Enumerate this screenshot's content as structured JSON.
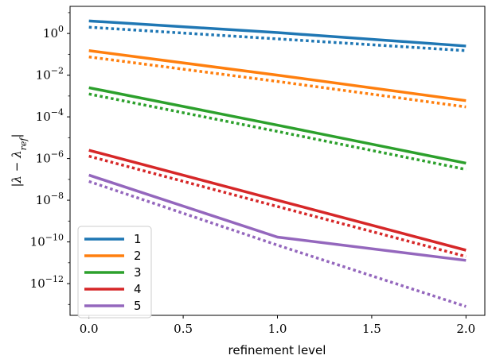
{
  "chart_data": {
    "type": "line",
    "title": "",
    "xlabel": "refinement level",
    "ylabel": "|λ − λ_ref|",
    "yscale": "log",
    "xlim": [
      -0.1,
      2.1
    ],
    "ylim": [
      3e-14,
      20
    ],
    "x": [
      0,
      1,
      2
    ],
    "xticks": [
      0.0,
      0.5,
      1.0,
      1.5,
      2.0
    ],
    "xtick_labels": [
      "0.0",
      "0.5",
      "1.0",
      "1.5",
      "2.0"
    ],
    "yticks": [
      1,
      0.01,
      0.0001,
      1e-06,
      1e-08,
      1e-10,
      1e-12
    ],
    "ytick_labels": [
      {
        "base": "10",
        "exp": "0"
      },
      {
        "base": "10",
        "exp": "−2"
      },
      {
        "base": "10",
        "exp": "−4"
      },
      {
        "base": "10",
        "exp": "−6"
      },
      {
        "base": "10",
        "exp": "−8"
      },
      {
        "base": "10",
        "exp": "−10"
      },
      {
        "base": "10",
        "exp": "−12"
      }
    ],
    "grid": false,
    "legend_position": "lower-left",
    "series": [
      {
        "name": "1",
        "color": "#1f77b4",
        "values": [
          4.0,
          1.1,
          0.25
        ],
        "reference": [
          2.0,
          0.55,
          0.15
        ]
      },
      {
        "name": "2",
        "color": "#ff7f0e",
        "values": [
          0.15,
          0.01,
          0.0006
        ],
        "reference": [
          0.075,
          0.005,
          0.0003
        ]
      },
      {
        "name": "3",
        "color": "#2ca02c",
        "values": [
          0.0025,
          4e-05,
          6e-07
        ],
        "reference": [
          0.00125,
          2e-05,
          3e-07
        ]
      },
      {
        "name": "4",
        "color": "#d62728",
        "values": [
          2.5e-06,
          1e-08,
          4e-11
        ],
        "reference": [
          1.3e-06,
          5e-09,
          2e-11
        ]
      },
      {
        "name": "5",
        "color": "#9467bd",
        "values": [
          1.6e-07,
          1.7e-10,
          1.3e-11
        ],
        "reference": [
          8e-08,
          7e-11,
          8e-14
        ]
      }
    ]
  }
}
